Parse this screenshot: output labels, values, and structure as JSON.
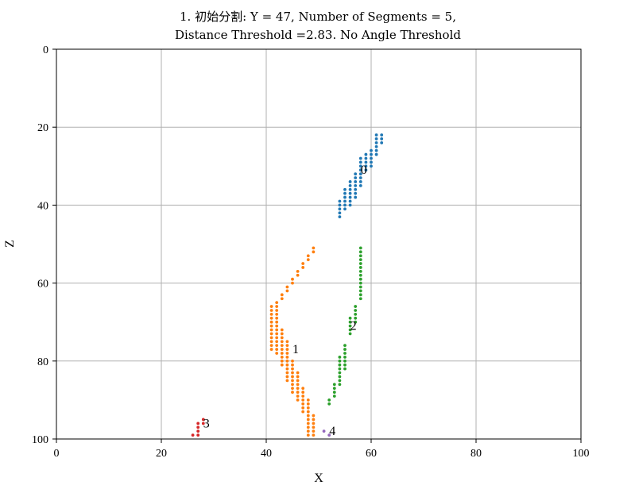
{
  "chart_data": {
    "type": "scatter",
    "title_line1": "1. 初始分割: Y = 47, Number of Segments = 5,",
    "title_line2": "Distance Threshold =2.83. No Angle Threshold",
    "xlabel": "X",
    "ylabel": "Z",
    "xlim": [
      0,
      100
    ],
    "ylim": [
      0,
      100
    ],
    "y_inverted": true,
    "grid": true,
    "x_ticks": [
      "0",
      "20",
      "40",
      "60",
      "80",
      "100"
    ],
    "y_ticks": [
      "0",
      "20",
      "40",
      "60",
      "80",
      "100"
    ],
    "series": [
      {
        "label": "0",
        "label_pos": [
          58,
          31
        ],
        "color": "#1f77b4",
        "points": [
          [
            54,
            43
          ],
          [
            54,
            42
          ],
          [
            54,
            41
          ],
          [
            54,
            40
          ],
          [
            54,
            39
          ],
          [
            55,
            41
          ],
          [
            55,
            40
          ],
          [
            55,
            39
          ],
          [
            55,
            38
          ],
          [
            55,
            37
          ],
          [
            55,
            36
          ],
          [
            56,
            40
          ],
          [
            56,
            39
          ],
          [
            56,
            38
          ],
          [
            56,
            37
          ],
          [
            56,
            36
          ],
          [
            56,
            35
          ],
          [
            56,
            34
          ],
          [
            57,
            38
          ],
          [
            57,
            37
          ],
          [
            57,
            36
          ],
          [
            57,
            35
          ],
          [
            57,
            34
          ],
          [
            57,
            33
          ],
          [
            57,
            32
          ],
          [
            58,
            35
          ],
          [
            58,
            34
          ],
          [
            58,
            33
          ],
          [
            58,
            32
          ],
          [
            58,
            31
          ],
          [
            58,
            30
          ],
          [
            58,
            29
          ],
          [
            58,
            28
          ],
          [
            59,
            31
          ],
          [
            59,
            30
          ],
          [
            59,
            29
          ],
          [
            59,
            28
          ],
          [
            59,
            27
          ],
          [
            60,
            30
          ],
          [
            60,
            29
          ],
          [
            60,
            28
          ],
          [
            60,
            27
          ],
          [
            60,
            26
          ],
          [
            61,
            27
          ],
          [
            61,
            26
          ],
          [
            61,
            25
          ],
          [
            61,
            24
          ],
          [
            61,
            23
          ],
          [
            61,
            22
          ],
          [
            62,
            24
          ],
          [
            62,
            23
          ],
          [
            62,
            22
          ]
        ]
      },
      {
        "label": "1",
        "label_pos": [
          45,
          77
        ],
        "color": "#ff7f0e",
        "points": [
          [
            49,
            51
          ],
          [
            49,
            52
          ],
          [
            48,
            53
          ],
          [
            48,
            54
          ],
          [
            47,
            55
          ],
          [
            47,
            56
          ],
          [
            46,
            57
          ],
          [
            46,
            58
          ],
          [
            45,
            59
          ],
          [
            45,
            60
          ],
          [
            44,
            61
          ],
          [
            44,
            62
          ],
          [
            43,
            63
          ],
          [
            43,
            64
          ],
          [
            42,
            65
          ],
          [
            41,
            66
          ],
          [
            41,
            67
          ],
          [
            41,
            68
          ],
          [
            41,
            69
          ],
          [
            41,
            70
          ],
          [
            41,
            71
          ],
          [
            41,
            72
          ],
          [
            41,
            73
          ],
          [
            41,
            74
          ],
          [
            41,
            75
          ],
          [
            41,
            76
          ],
          [
            41,
            77
          ],
          [
            42,
            66
          ],
          [
            42,
            67
          ],
          [
            42,
            68
          ],
          [
            42,
            69
          ],
          [
            42,
            70
          ],
          [
            42,
            71
          ],
          [
            42,
            72
          ],
          [
            42,
            73
          ],
          [
            42,
            74
          ],
          [
            42,
            75
          ],
          [
            42,
            76
          ],
          [
            42,
            77
          ],
          [
            42,
            78
          ],
          [
            43,
            72
          ],
          [
            43,
            73
          ],
          [
            43,
            74
          ],
          [
            43,
            75
          ],
          [
            43,
            76
          ],
          [
            43,
            77
          ],
          [
            43,
            78
          ],
          [
            43,
            79
          ],
          [
            43,
            80
          ],
          [
            43,
            81
          ],
          [
            44,
            75
          ],
          [
            44,
            76
          ],
          [
            44,
            77
          ],
          [
            44,
            78
          ],
          [
            44,
            79
          ],
          [
            44,
            80
          ],
          [
            44,
            81
          ],
          [
            44,
            82
          ],
          [
            44,
            83
          ],
          [
            44,
            84
          ],
          [
            44,
            85
          ],
          [
            45,
            80
          ],
          [
            45,
            81
          ],
          [
            45,
            82
          ],
          [
            45,
            83
          ],
          [
            45,
            84
          ],
          [
            45,
            85
          ],
          [
            45,
            86
          ],
          [
            45,
            87
          ],
          [
            45,
            88
          ],
          [
            46,
            83
          ],
          [
            46,
            84
          ],
          [
            46,
            85
          ],
          [
            46,
            86
          ],
          [
            46,
            87
          ],
          [
            46,
            88
          ],
          [
            46,
            89
          ],
          [
            46,
            90
          ],
          [
            47,
            87
          ],
          [
            47,
            88
          ],
          [
            47,
            89
          ],
          [
            47,
            90
          ],
          [
            47,
            91
          ],
          [
            47,
            92
          ],
          [
            47,
            93
          ],
          [
            48,
            90
          ],
          [
            48,
            91
          ],
          [
            48,
            92
          ],
          [
            48,
            93
          ],
          [
            48,
            94
          ],
          [
            48,
            95
          ],
          [
            48,
            96
          ],
          [
            48,
            97
          ],
          [
            48,
            98
          ],
          [
            48,
            99
          ],
          [
            49,
            94
          ],
          [
            49,
            95
          ],
          [
            49,
            96
          ],
          [
            49,
            97
          ],
          [
            49,
            98
          ],
          [
            49,
            99
          ]
        ]
      },
      {
        "label": "2",
        "label_pos": [
          56,
          71
        ],
        "color": "#2ca02c",
        "points": [
          [
            58,
            51
          ],
          [
            58,
            52
          ],
          [
            58,
            53
          ],
          [
            58,
            54
          ],
          [
            58,
            55
          ],
          [
            58,
            56
          ],
          [
            58,
            57
          ],
          [
            58,
            58
          ],
          [
            58,
            59
          ],
          [
            58,
            60
          ],
          [
            58,
            61
          ],
          [
            58,
            62
          ],
          [
            58,
            63
          ],
          [
            58,
            64
          ],
          [
            57,
            66
          ],
          [
            57,
            67
          ],
          [
            57,
            68
          ],
          [
            57,
            69
          ],
          [
            57,
            70
          ],
          [
            56,
            69
          ],
          [
            56,
            70
          ],
          [
            56,
            71
          ],
          [
            56,
            72
          ],
          [
            56,
            73
          ],
          [
            55,
            76
          ],
          [
            55,
            77
          ],
          [
            55,
            78
          ],
          [
            55,
            79
          ],
          [
            55,
            80
          ],
          [
            55,
            81
          ],
          [
            55,
            82
          ],
          [
            54,
            79
          ],
          [
            54,
            80
          ],
          [
            54,
            81
          ],
          [
            54,
            82
          ],
          [
            54,
            83
          ],
          [
            54,
            84
          ],
          [
            54,
            85
          ],
          [
            54,
            86
          ],
          [
            53,
            86
          ],
          [
            53,
            87
          ],
          [
            53,
            88
          ],
          [
            53,
            89
          ],
          [
            52,
            90
          ],
          [
            52,
            91
          ]
        ]
      },
      {
        "label": "3",
        "label_pos": [
          28,
          96
        ],
        "color": "#d62728",
        "points": [
          [
            26,
            99
          ],
          [
            27,
            99
          ],
          [
            27,
            98
          ],
          [
            27,
            97
          ],
          [
            27,
            96
          ],
          [
            28,
            95
          ],
          [
            28,
            96
          ]
        ]
      },
      {
        "label": "4",
        "label_pos": [
          52,
          98
        ],
        "color": "#9467bd",
        "points": [
          [
            51,
            98
          ],
          [
            52,
            99
          ]
        ]
      }
    ]
  }
}
